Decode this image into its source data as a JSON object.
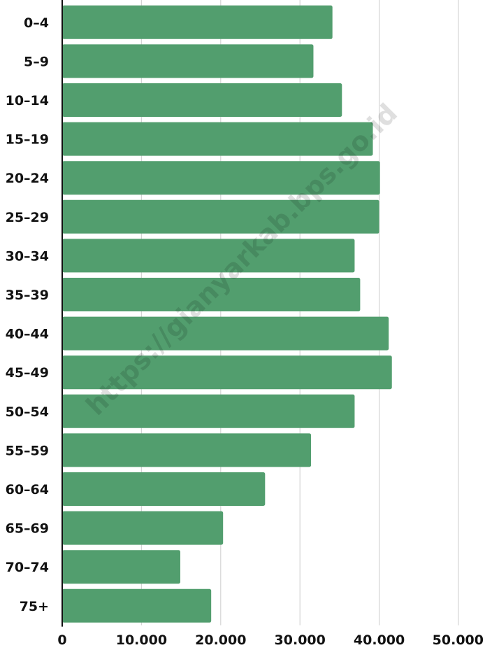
{
  "chart_data": {
    "type": "bar",
    "orientation": "horizontal",
    "categories": [
      "0–4",
      "5–9",
      "10–14",
      "15–19",
      "20–24",
      "25–29",
      "30–34",
      "35–39",
      "40–44",
      "45–49",
      "50–54",
      "55–59",
      "60–64",
      "65–69",
      "70–74",
      "75+"
    ],
    "values": [
      34100,
      31700,
      35300,
      39200,
      40100,
      40000,
      36900,
      37600,
      41200,
      41600,
      36900,
      31400,
      25600,
      20300,
      14900,
      18800
    ],
    "xlim": [
      0,
      50000
    ],
    "x_ticks": [
      0,
      10000,
      20000,
      30000,
      40000,
      50000
    ],
    "x_tick_labels": [
      "0",
      "10.000",
      "20.000",
      "30.000",
      "40.000",
      "50.000"
    ],
    "title": "",
    "xlabel": "",
    "ylabel": "",
    "grid": "vertical",
    "legend": "none",
    "bar_color": "#529e6e",
    "gridline_color": "#d4d4d4",
    "axis_color": "#111111"
  },
  "watermark": {
    "text": "https://gianyarkab.bps.go.id"
  }
}
